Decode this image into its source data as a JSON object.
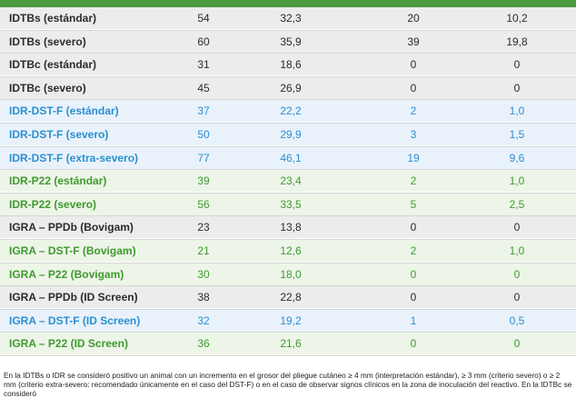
{
  "table": {
    "rows": [
      {
        "label": "IDTBs (estándar)",
        "v1": "54",
        "v2": "32,3",
        "v3": "20",
        "v4": "10,2",
        "tone": "grey"
      },
      {
        "label": "IDTBs (severo)",
        "v1": "60",
        "v2": "35,9",
        "v3": "39",
        "v4": "19,8",
        "tone": "grey"
      },
      {
        "label": "IDTBc (estándar)",
        "v1": "31",
        "v2": "18,6",
        "v3": "0",
        "v4": "0",
        "tone": "grey"
      },
      {
        "label": "IDTBc (severo)",
        "v1": "45",
        "v2": "26,9",
        "v3": "0",
        "v4": "0",
        "tone": "grey"
      },
      {
        "label": "IDR-DST-F (estándar)",
        "v1": "37",
        "v2": "22,2",
        "v3": "2",
        "v4": "1,0",
        "tone": "blue"
      },
      {
        "label": "IDR-DST-F (severo)",
        "v1": "50",
        "v2": "29,9",
        "v3": "3",
        "v4": "1,5",
        "tone": "blue"
      },
      {
        "label": "IDR-DST-F (extra-severo)",
        "v1": "77",
        "v2": "46,1",
        "v3": "19",
        "v4": "9,6",
        "tone": "blue"
      },
      {
        "label": "IDR-P22 (estándar)",
        "v1": "39",
        "v2": "23,4",
        "v3": "2",
        "v4": "1,0",
        "tone": "green"
      },
      {
        "label": "IDR-P22 (severo)",
        "v1": "56",
        "v2": "33,5",
        "v3": "5",
        "v4": "2,5",
        "tone": "green"
      },
      {
        "label": "IGRA – PPDb (Bovigam)",
        "v1": "23",
        "v2": "13,8",
        "v3": "0",
        "v4": "0",
        "tone": "grey"
      },
      {
        "label": "IGRA – DST-F (Bovigam)",
        "v1": "21",
        "v2": "12,6",
        "v3": "2",
        "v4": "1,0",
        "tone": "green"
      },
      {
        "label": "IGRA – P22 (Bovigam)",
        "v1": "30",
        "v2": "18,0",
        "v3": "0",
        "v4": "0",
        "tone": "green"
      },
      {
        "label": "IGRA – PPDb (ID Screen)",
        "v1": "38",
        "v2": "22,8",
        "v3": "0",
        "v4": "0",
        "tone": "grey"
      },
      {
        "label": "IGRA – DST-F (ID Screen)",
        "v1": "32",
        "v2": "19,2",
        "v3": "1",
        "v4": "0,5",
        "tone": "blue"
      },
      {
        "label": "IGRA – P22 (ID Screen)",
        "v1": "36",
        "v2": "21,6",
        "v3": "0",
        "v4": "0",
        "tone": "green"
      }
    ]
  },
  "footnote": "En la IDTBs o IDR se consideró positivo un animal con un incremento en el grosor del pliegue cutáneo ≥ 4 mm (interpretación estándar), ≥ 3 mm (criterio severo) o ≥ 2 mm (criterio extra-severo: recomendado únicamente en el caso del DST-F) o en el caso de observar signos clínicos en la zona de inoculación del reactivo. En la IDTBc se consideró",
  "colors": {
    "header_green": "#4a9a3e",
    "grey_bg": "#ececec",
    "grey_text": "#2b2b2b",
    "blue_bg": "#e9f2fb",
    "blue_text": "#2a8fd0",
    "green_bg": "#edf5e8",
    "green_text": "#3f9a2f"
  }
}
